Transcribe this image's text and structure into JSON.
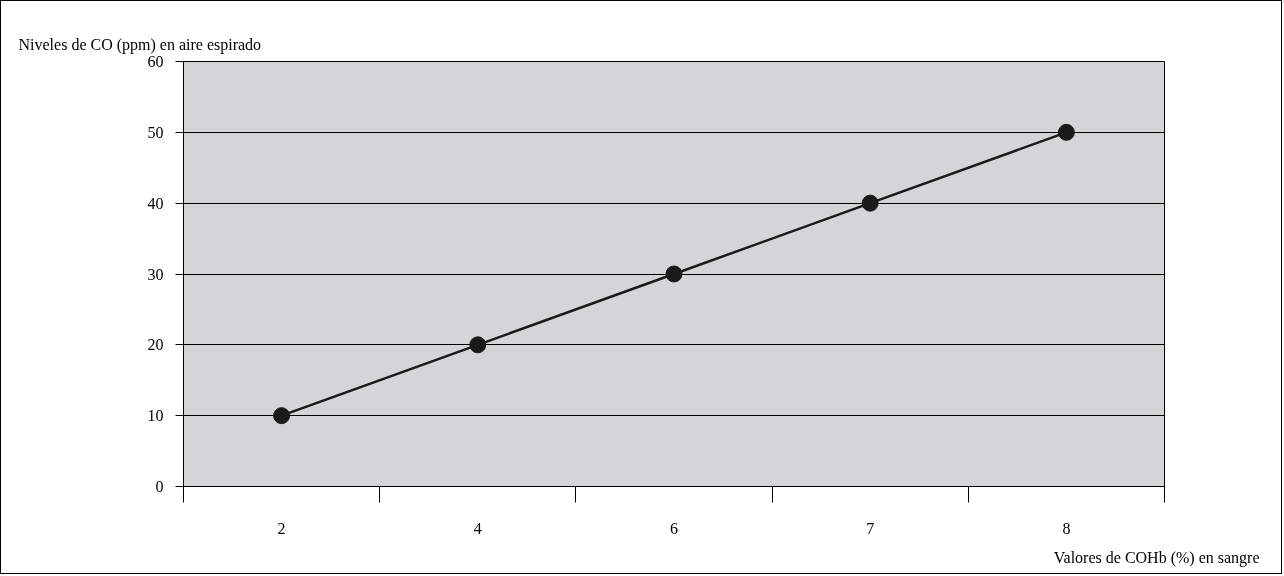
{
  "chart_data": {
    "type": "line",
    "ylabel": "Niveles de CO (ppm) en aire espirado",
    "xlabel": "Valores de COHb (%) en sangre",
    "categories": [
      "2",
      "4",
      "6",
      "7",
      "8"
    ],
    "series": [
      {
        "color": "#1a1a1a",
        "values": [
          10,
          20,
          30,
          40,
          50
        ]
      }
    ],
    "ylim": [
      0,
      60
    ],
    "yticks": [
      0,
      10,
      20,
      30,
      40,
      50,
      60
    ],
    "grid": "y",
    "marker": "circle",
    "line_style": "solid"
  }
}
